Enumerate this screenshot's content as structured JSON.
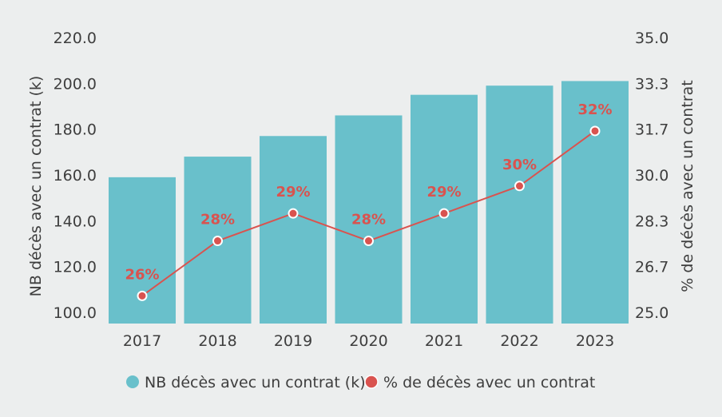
{
  "chart_data": {
    "type": "bar",
    "categories": [
      "2017",
      "2018",
      "2019",
      "2020",
      "2021",
      "2022",
      "2023"
    ],
    "series": [
      {
        "name": "NB décès avec un contrat (k)",
        "type": "bar",
        "axis": "left",
        "color": "#69c0cb",
        "values": [
          159,
          168,
          177,
          186,
          195,
          199,
          201
        ]
      },
      {
        "name": "% de décès avec un contrat",
        "type": "line",
        "axis": "right",
        "color": "#d9534f",
        "values": [
          25.6,
          27.6,
          28.6,
          27.6,
          28.6,
          29.6,
          31.6
        ],
        "labels": [
          "26%",
          "28%",
          "29%",
          "28%",
          "29%",
          "30%",
          "32%"
        ]
      }
    ],
    "ylabel": "NB décès avec un contrat (k)",
    "y2label": "% de décès avec un contrat",
    "ylim": [
      100,
      220
    ],
    "y2lim": [
      25.0,
      35.0
    ],
    "yticks": [
      "220.0",
      "200.0",
      "180.0",
      "160.0",
      "140.0",
      "120.0",
      "100.0"
    ],
    "y2ticks": [
      "35.0",
      "33.3",
      "31.7",
      "30.0",
      "28.3",
      "26.7",
      "25.0"
    ],
    "legend_position": "bottom",
    "grid": false
  },
  "legend": {
    "items": [
      {
        "label": "NB décès avec un contrat (k)",
        "color": "#69c0cb"
      },
      {
        "label": "% de décès avec un contrat",
        "color": "#d9534f"
      }
    ]
  }
}
